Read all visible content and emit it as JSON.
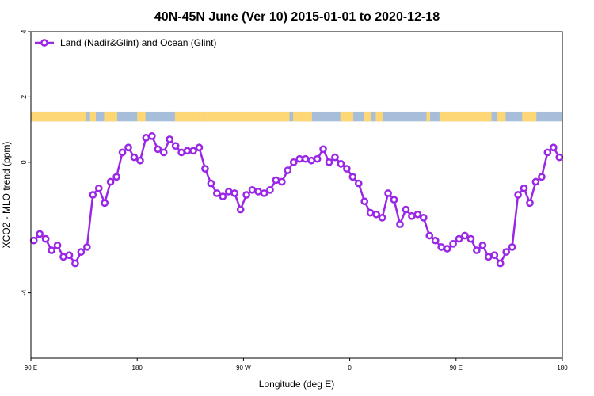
{
  "chart_data": {
    "type": "line",
    "title": "40N-45N June (Ver 10)   2015-01-01 to 2020-12-18",
    "xlabel": "Longitude (deg E)",
    "ylabel": "XCO2 - MLO trend (ppm)",
    "xlim": [
      0,
      450
    ],
    "ylim": [
      -6,
      4
    ],
    "x_ticks": [
      {
        "value": 0,
        "label": "90 E"
      },
      {
        "value": 90,
        "label": "180"
      },
      {
        "value": 180,
        "label": "90 W"
      },
      {
        "value": 270,
        "label": "0"
      },
      {
        "value": 360,
        "label": "90 E"
      },
      {
        "value": 450,
        "label": "180"
      }
    ],
    "y_ticks": [
      {
        "value": 4,
        "label": "4"
      },
      {
        "value": 2,
        "label": "2"
      },
      {
        "value": 0,
        "label": "0"
      },
      {
        "value": -4,
        "label": "-4"
      }
    ],
    "grid": false,
    "legend": {
      "position": "top-left"
    },
    "land_ocean_strip": {
      "y_range": [
        1.25,
        1.55
      ],
      "land_color": "#fdd776",
      "ocean_color": "#a7bedb",
      "land_segments": [
        [
          0,
          47
        ],
        [
          50,
          55
        ],
        [
          62,
          73
        ],
        [
          90,
          97
        ],
        [
          122,
          147
        ],
        [
          147,
          219
        ],
        [
          222,
          238
        ],
        [
          262,
          273
        ],
        [
          282,
          288
        ],
        [
          292,
          298
        ],
        [
          335,
          338
        ],
        [
          346,
          390
        ],
        [
          395,
          402
        ],
        [
          416,
          428
        ]
      ]
    },
    "series": [
      {
        "name": "Land (Nadir&Glint) and Ocean (Glint)",
        "color": "#9b27e6",
        "x": [
          2.5,
          7.5,
          12.5,
          17.5,
          22.5,
          27.5,
          32.5,
          37.5,
          42.5,
          47.5,
          52.5,
          57.5,
          62.5,
          67.5,
          72.5,
          77.5,
          82.5,
          87.5,
          92.5,
          97.5,
          102.5,
          107.5,
          112.5,
          117.5,
          122.5,
          127.5,
          132.5,
          137.5,
          142.5,
          147.5,
          152.5,
          157.5,
          162.5,
          167.5,
          172.5,
          177.5,
          182.5,
          187.5,
          192.5,
          197.5,
          202.5,
          207.5,
          212.5,
          217.5,
          222.5,
          227.5,
          232.5,
          237.5,
          242.5,
          247.5,
          252.5,
          257.5,
          262.5,
          267.5,
          272.5,
          277.5,
          282.5,
          287.5,
          292.5,
          297.5,
          302.5,
          307.5,
          312.5,
          317.5,
          322.5,
          327.5,
          332.5,
          337.5,
          342.5,
          347.5,
          352.5,
          357.5,
          362.5,
          367.5,
          372.5,
          377.5,
          382.5,
          387.5,
          392.5,
          397.5,
          402.5,
          407.5,
          412.5,
          417.5,
          422.5,
          427.5,
          432.5,
          437.5,
          442.5,
          447.5
        ],
        "values": [
          -2.4,
          -2.2,
          -2.35,
          -2.7,
          -2.55,
          -2.9,
          -2.85,
          -3.1,
          -2.75,
          -2.6,
          -1.0,
          -0.8,
          -1.25,
          -0.6,
          -0.45,
          0.3,
          0.45,
          0.15,
          0.05,
          0.75,
          0.8,
          0.4,
          0.3,
          0.7,
          0.5,
          0.3,
          0.35,
          0.35,
          0.45,
          -0.2,
          -0.65,
          -0.95,
          -1.05,
          -0.9,
          -0.95,
          -1.45,
          -1.0,
          -0.85,
          -0.9,
          -0.95,
          -0.85,
          -0.55,
          -0.6,
          -0.25,
          0.0,
          0.1,
          0.1,
          0.05,
          0.1,
          0.4,
          0.0,
          0.15,
          -0.05,
          -0.2,
          -0.45,
          -0.65,
          -1.2,
          -1.55,
          -1.6,
          -1.7,
          -0.95,
          -1.15,
          -1.9,
          -1.45,
          -1.65,
          -1.6,
          -1.7,
          -2.25,
          -2.4,
          -2.6,
          -2.65,
          -2.5,
          -2.35,
          -2.25,
          -2.35,
          -2.7,
          -2.55,
          -2.9,
          -2.85,
          -3.1,
          -2.75,
          -2.6,
          -1.0,
          -0.8,
          -1.25,
          -0.6,
          -0.45,
          0.3,
          0.45,
          0.15
        ]
      }
    ]
  }
}
